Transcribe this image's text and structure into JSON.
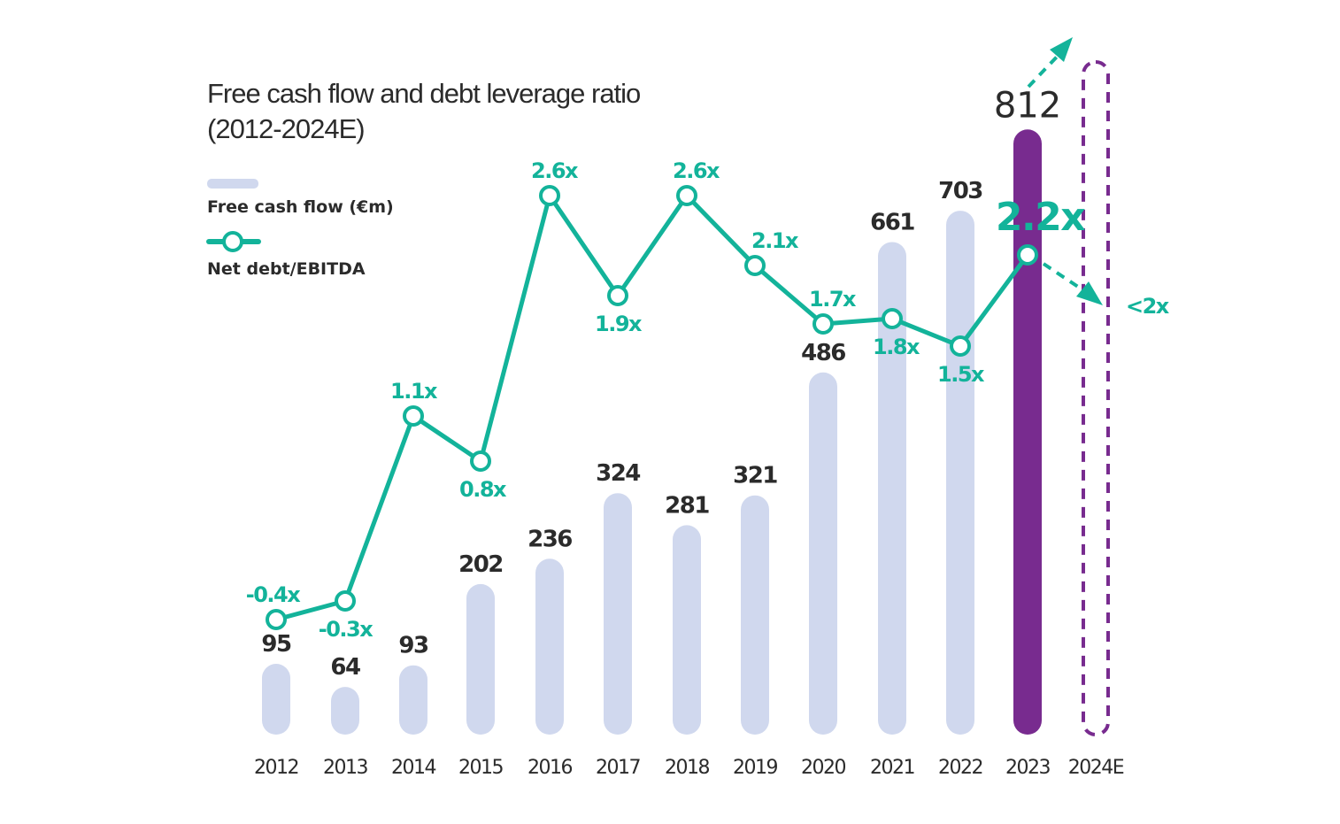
{
  "chart_data": {
    "type": "bar",
    "title": "Free cash flow and debt leverage ratio",
    "subtitle": "(2012-2024E)",
    "categories": [
      "2012",
      "2013",
      "2014",
      "2015",
      "2016",
      "2017",
      "2018",
      "2019",
      "2020",
      "2021",
      "2022",
      "2023",
      "2024E"
    ],
    "series": [
      {
        "name": "Free cash flow (€m)",
        "type": "bar",
        "values": [
          95,
          64,
          93,
          202,
          236,
          324,
          281,
          321,
          486,
          661,
          703,
          812,
          null
        ],
        "labels": [
          "95",
          "64",
          "93",
          "202",
          "236",
          "324",
          "281",
          "321",
          "486",
          "661",
          "703",
          "812",
          ""
        ]
      },
      {
        "name": "Net debt/EBITDA",
        "type": "line",
        "values": [
          -0.4,
          -0.3,
          1.1,
          0.8,
          2.6,
          1.9,
          2.6,
          2.1,
          1.7,
          1.8,
          1.5,
          2.2,
          null
        ],
        "labels": [
          "-0.4x",
          "-0.3x",
          "1.1x",
          "0.8x",
          "2.6x",
          "1.9x",
          "2.6x",
          "2.1x",
          "1.7x",
          "1.8x",
          "1.5x",
          "2.2x",
          ""
        ]
      }
    ],
    "forecast": {
      "category": "2024E",
      "ratio_label": "<2x",
      "fcf_trend": "up",
      "ratio_trend": "down"
    },
    "highlight_category": "2023",
    "legend_placement": "top-left",
    "grid": false,
    "colors": {
      "bar": "#d0d8ee",
      "highlight_bar": "#782b8f",
      "line": "#13b39a",
      "text": "#2b2b2b"
    }
  }
}
